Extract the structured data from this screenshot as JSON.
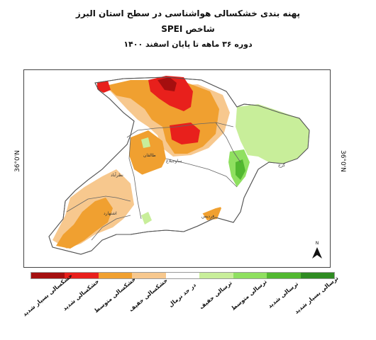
{
  "title": {
    "line1": "پهنه بندی خشکسالی هواشناسی در سطح استان البرز",
    "line2": "شاخص SPEI",
    "line3": "دوره ۳۶ ماهه تا پایان اسفند ۱۴۰۰"
  },
  "map": {
    "lat_left": "36°0'N",
    "lat_right": "36°0'N",
    "north_label": "N",
    "city_labels": [
      "کرج",
      "طالقان",
      "ساوجبلاغ",
      "نظرآباد",
      "اشتهارد",
      "فردیس"
    ]
  },
  "legend": {
    "items": [
      {
        "label": "خشکسالی بسیار شدید",
        "color": "#a50f0f"
      },
      {
        "label": "خشکسالی شدید",
        "color": "#e8201c"
      },
      {
        "label": "خشکسالی متوسط",
        "color": "#f0a030"
      },
      {
        "label": "خشکسالی خفیف",
        "color": "#f7c88e"
      },
      {
        "label": "در حد نرمال",
        "color": "#ffffff"
      },
      {
        "label": "ترسالی خفیف",
        "color": "#c8ee9a"
      },
      {
        "label": "ترسالی متوسط",
        "color": "#8fe060"
      },
      {
        "label": "ترسالی شدید",
        "color": "#52b830"
      },
      {
        "label": "ترسالی بسیار شدید",
        "color": "#2e8b22"
      }
    ]
  }
}
